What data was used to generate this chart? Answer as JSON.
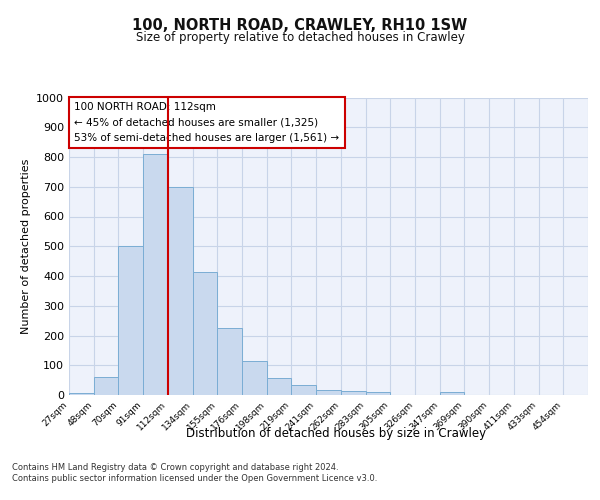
{
  "title": "100, NORTH ROAD, CRAWLEY, RH10 1SW",
  "subtitle": "Size of property relative to detached houses in Crawley",
  "xlabel": "Distribution of detached houses by size in Crawley",
  "ylabel": "Number of detached properties",
  "bin_labels": [
    "27sqm",
    "48sqm",
    "70sqm",
    "91sqm",
    "112sqm",
    "134sqm",
    "155sqm",
    "176sqm",
    "198sqm",
    "219sqm",
    "241sqm",
    "262sqm",
    "283sqm",
    "305sqm",
    "326sqm",
    "347sqm",
    "369sqm",
    "390sqm",
    "411sqm",
    "433sqm",
    "454sqm"
  ],
  "bar_heights": [
    8,
    60,
    500,
    810,
    700,
    415,
    225,
    115,
    57,
    35,
    18,
    13,
    10,
    0,
    0,
    10,
    0,
    0,
    0,
    0,
    0
  ],
  "bar_color": "#c9d9ee",
  "bar_edge_color": "#7aadd4",
  "grid_color": "#c8d4e8",
  "background_color": "#eef2fb",
  "vline_color": "#cc0000",
  "vline_x": 4.0,
  "annotation_title": "100 NORTH ROAD: 112sqm",
  "annotation_line1": "← 45% of detached houses are smaller (1,325)",
  "annotation_line2": "53% of semi-detached houses are larger (1,561) →",
  "annotation_box_color": "#ffffff",
  "annotation_box_edge": "#cc0000",
  "ylim": [
    0,
    1000
  ],
  "yticks": [
    0,
    100,
    200,
    300,
    400,
    500,
    600,
    700,
    800,
    900,
    1000
  ],
  "footnote1": "Contains HM Land Registry data © Crown copyright and database right 2024.",
  "footnote2": "Contains public sector information licensed under the Open Government Licence v3.0."
}
